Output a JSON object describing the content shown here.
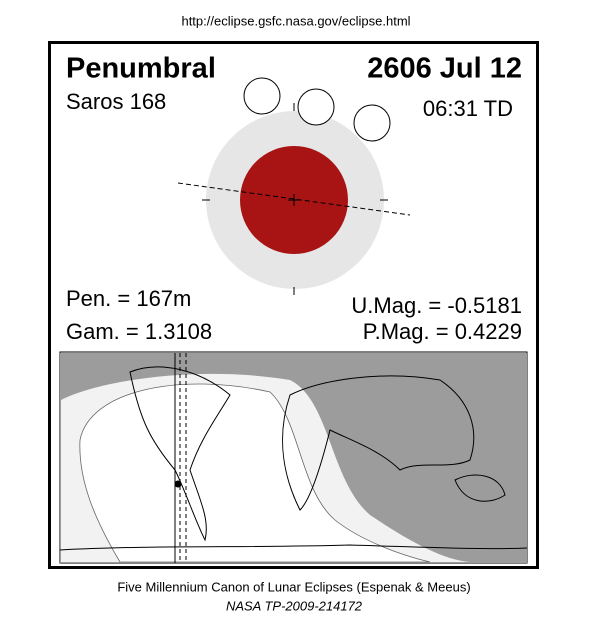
{
  "url": "http://eclipse.gsfc.nasa.gov/eclipse.html",
  "header": {
    "type": "Penumbral",
    "date": "2606 Jul 12",
    "saros": "Saros 168",
    "time": "06:31 TD"
  },
  "parameters": {
    "pen": "Pen. = 167m",
    "gam": "Gam. = 1.3108",
    "umag": "U.Mag. = -0.5181",
    "pmag": "P.Mag. = 0.4229"
  },
  "footer": {
    "line1": "Five Millennium Canon of Lunar Eclipses (Espenak & Meeus)",
    "line2": "NASA TP-2009-214172"
  }
}
